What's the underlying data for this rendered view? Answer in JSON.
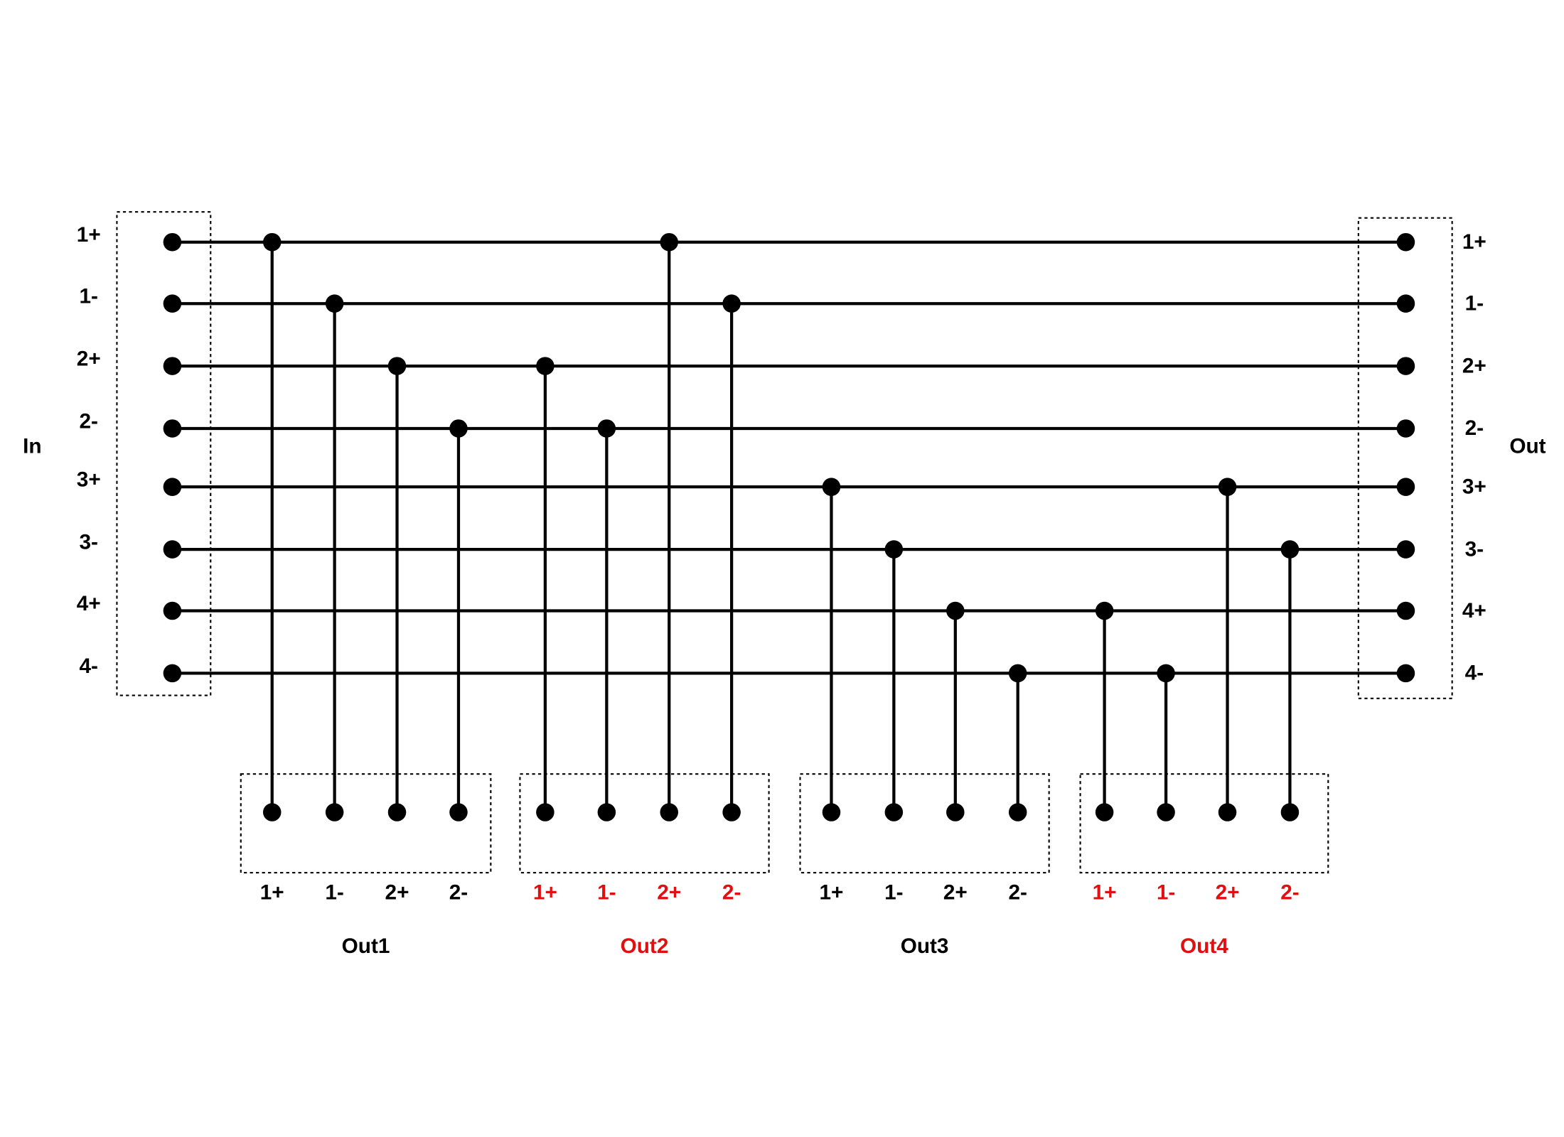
{
  "input": {
    "title": "In",
    "pins": [
      "1+",
      "1-",
      "2+",
      "2-",
      "3+",
      "3-",
      "4+",
      "4-"
    ]
  },
  "output": {
    "title": "Out",
    "pins": [
      "1+",
      "1-",
      "2+",
      "2-",
      "3+",
      "3-",
      "4+",
      "4-"
    ]
  },
  "groups": [
    {
      "name": "Out1",
      "color": "#000000",
      "pins": [
        "1+",
        "1-",
        "2+",
        "2-"
      ]
    },
    {
      "name": "Out2",
      "color": "#e01010",
      "pins": [
        "1+",
        "1-",
        "2+",
        "2-"
      ]
    },
    {
      "name": "Out3",
      "color": "#000000",
      "pins": [
        "1+",
        "1-",
        "2+",
        "2-"
      ]
    },
    {
      "name": "Out4",
      "color": "#e01010",
      "pins": [
        "1+",
        "1-",
        "2+",
        "2-"
      ]
    }
  ]
}
